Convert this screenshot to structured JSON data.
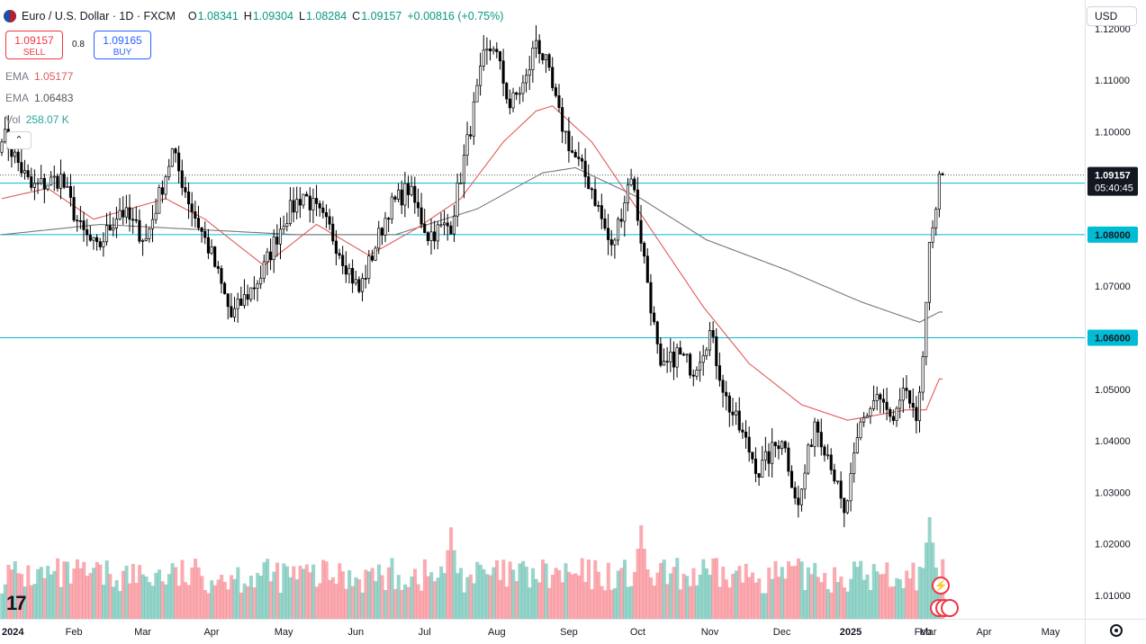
{
  "header": {
    "title": "Euro / U.S. Dollar · 1D · FXCM",
    "ohlc": [
      {
        "k": "O",
        "v": "1.08341"
      },
      {
        "k": "H",
        "v": "1.09304"
      },
      {
        "k": "L",
        "v": "1.08284"
      },
      {
        "k": "C",
        "v": "1.09157"
      }
    ],
    "change": "+0.00816 (+0.75%)"
  },
  "trade": {
    "sell_price": "1.09157",
    "sell_label": "SELL",
    "spread": "0.8",
    "buy_price": "1.09165",
    "buy_label": "BUY"
  },
  "indicators": [
    {
      "name": "EMA",
      "value": "1.05177",
      "color": "#e05a5a"
    },
    {
      "name": "EMA",
      "value": "1.06483",
      "color": "#555555"
    },
    {
      "name": "Vol",
      "value": "258.07 K",
      "color": "#26a69a"
    }
  ],
  "currency_button": "USD",
  "price_badge": {
    "price": "1.09157",
    "countdown": "05:40:45"
  },
  "colors": {
    "up": "#089981",
    "down": "#f23645",
    "line": "#00bcd4",
    "ema_fast": "#e05a5a",
    "ema_slow": "#777777",
    "candle": "#000000"
  },
  "icons": [
    "flag-eur-usd-icon",
    "chevron-up-icon",
    "tradingview-logo-icon",
    "settings-gear-icon",
    "lightning-icon",
    "us-flag-icon"
  ],
  "chart_data": {
    "type": "candlestick",
    "y_axis_ticks": [
      "1.12000",
      "1.11000",
      "1.10000",
      "1.09000",
      "1.08000",
      "1.07000",
      "1.06000",
      "1.05000",
      "1.04000",
      "1.03000",
      "1.02000",
      "1.01000"
    ],
    "ylim": [
      1.0065,
      1.1245
    ],
    "x_axis_ticks": [
      "2024",
      "Feb",
      "Mar",
      "Apr",
      "May",
      "Jun",
      "Jul",
      "Aug",
      "Sep",
      "Oct",
      "Nov",
      "Dec",
      "2025",
      "Feb",
      "Mar",
      "Apr",
      "May"
    ],
    "horizontal_levels": [
      {
        "value": 1.09,
        "label": "1.09000"
      },
      {
        "value": 1.08,
        "label": "1.08000"
      },
      {
        "value": 1.06,
        "label": "1.06000"
      }
    ],
    "current_price": 1.09157,
    "close_path": [
      [
        0,
        1.1
      ],
      [
        9,
        1.089
      ],
      [
        18,
        1.091
      ],
      [
        24,
        1.081
      ],
      [
        29,
        1.077
      ],
      [
        36,
        1.085
      ],
      [
        44,
        1.079
      ],
      [
        52,
        1.096
      ],
      [
        58,
        1.085
      ],
      [
        64,
        1.076
      ],
      [
        70,
        1.064
      ],
      [
        79,
        1.072
      ],
      [
        86,
        1.083
      ],
      [
        92,
        1.088
      ],
      [
        100,
        1.081
      ],
      [
        109,
        1.069
      ],
      [
        118,
        1.085
      ],
      [
        124,
        1.089
      ],
      [
        130,
        1.08
      ],
      [
        137,
        1.082
      ],
      [
        143,
        1.101
      ],
      [
        147,
        1.114
      ],
      [
        150,
        1.117
      ],
      [
        155,
        1.105
      ],
      [
        160,
        1.11
      ],
      [
        163,
        1.118
      ],
      [
        166,
        1.113
      ],
      [
        170,
        1.103
      ],
      [
        174,
        1.096
      ],
      [
        180,
        1.089
      ],
      [
        186,
        1.077
      ],
      [
        192,
        1.092
      ],
      [
        197,
        1.071
      ],
      [
        201,
        1.053
      ],
      [
        206,
        1.057
      ],
      [
        211,
        1.054
      ],
      [
        216,
        1.061
      ],
      [
        221,
        1.048
      ],
      [
        226,
        1.041
      ],
      [
        231,
        1.034
      ],
      [
        238,
        1.041
      ],
      [
        243,
        1.027
      ],
      [
        248,
        1.044
      ],
      [
        253,
        1.036
      ],
      [
        257,
        1.025
      ],
      [
        262,
        1.043
      ],
      [
        267,
        1.049
      ],
      [
        272,
        1.043
      ],
      [
        276,
        1.05
      ],
      [
        279,
        1.042
      ],
      [
        281,
        1.058
      ],
      [
        283,
        1.077
      ],
      [
        285,
        1.084
      ],
      [
        286,
        1.09
      ],
      [
        287,
        1.09157
      ]
    ],
    "ema_fast_path": [
      [
        0,
        1.087
      ],
      [
        14,
        1.089
      ],
      [
        28,
        1.083
      ],
      [
        50,
        1.087
      ],
      [
        62,
        1.083
      ],
      [
        80,
        1.074
      ],
      [
        96,
        1.082
      ],
      [
        112,
        1.076
      ],
      [
        126,
        1.081
      ],
      [
        140,
        1.087
      ],
      [
        153,
        1.098
      ],
      [
        163,
        1.104
      ],
      [
        168,
        1.105
      ],
      [
        180,
        1.098
      ],
      [
        196,
        1.083
      ],
      [
        214,
        1.066
      ],
      [
        228,
        1.055
      ],
      [
        244,
        1.047
      ],
      [
        258,
        1.044
      ],
      [
        276,
        1.046
      ],
      [
        282,
        1.046
      ],
      [
        286,
        1.052
      ]
    ],
    "ema_slow_path": [
      [
        0,
        1.08
      ],
      [
        30,
        1.082
      ],
      [
        60,
        1.081
      ],
      [
        90,
        1.08
      ],
      [
        120,
        1.08
      ],
      [
        145,
        1.085
      ],
      [
        165,
        1.092
      ],
      [
        175,
        1.093
      ],
      [
        195,
        1.087
      ],
      [
        215,
        1.079
      ],
      [
        240,
        1.073
      ],
      [
        262,
        1.067
      ],
      [
        280,
        1.063
      ],
      [
        286,
        1.065
      ]
    ],
    "volume_highlights": [
      {
        "bar": 137,
        "v": 0.9
      },
      {
        "bar": 195,
        "v": 0.92
      },
      {
        "bar": 248,
        "v": 0.55
      },
      {
        "bar": 283,
        "v": 1.0
      }
    ]
  }
}
